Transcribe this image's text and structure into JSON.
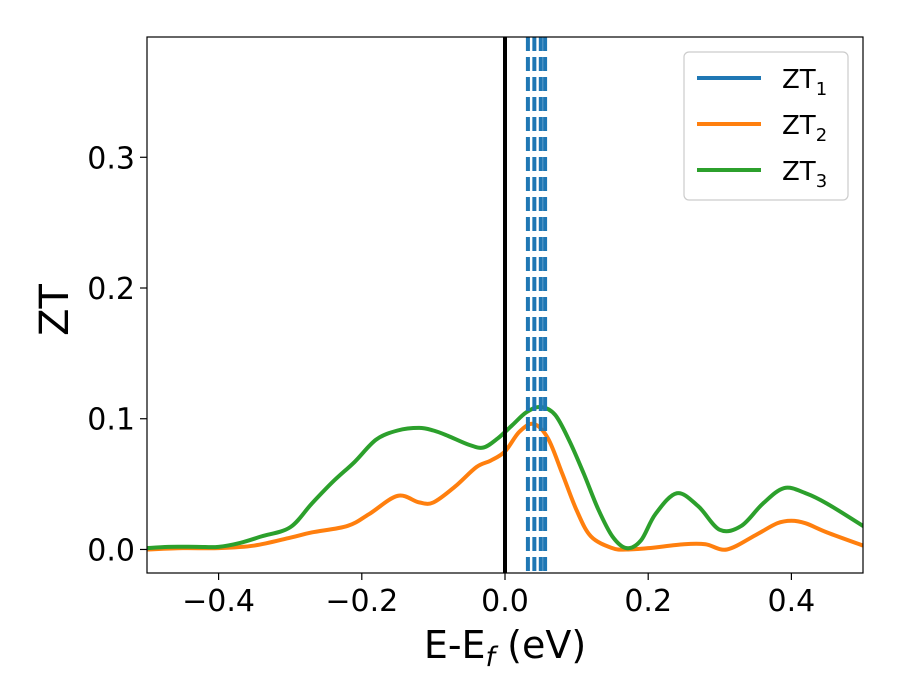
{
  "chart_data": {
    "type": "line",
    "xlabel": {
      "main": "E-E",
      "sub": "f",
      "tail": " (eV)"
    },
    "ylabel": "ZT",
    "xlim": [
      -0.5,
      0.5
    ],
    "ylim": [
      -0.018,
      0.392
    ],
    "x_ticks": [
      -0.4,
      -0.2,
      0.0,
      0.2,
      0.4
    ],
    "x_tick_labels": [
      "−0.4",
      "−0.2",
      "0.0",
      "0.2",
      "0.4"
    ],
    "y_ticks": [
      0.0,
      0.1,
      0.2,
      0.3
    ],
    "y_tick_labels": [
      "0.0",
      "0.1",
      "0.2",
      "0.3"
    ],
    "grid": false,
    "legend_position": "top-right",
    "fermi_level": 0.0,
    "dashed_markers": [
      0.032,
      0.041,
      0.05,
      0.056
    ],
    "series": [
      {
        "name": "ZT",
        "name_sub": "1",
        "color": "#1f77b4",
        "dashed": true,
        "x": [],
        "y": []
      },
      {
        "name": "ZT",
        "name_sub": "2",
        "color": "#ff7f0e",
        "dashed": false,
        "x": [
          -0.5,
          -0.45,
          -0.4,
          -0.35,
          -0.3,
          -0.27,
          -0.22,
          -0.19,
          -0.15,
          -0.12,
          -0.1,
          -0.07,
          -0.04,
          -0.02,
          0.0,
          0.02,
          0.04,
          0.06,
          0.08,
          0.1,
          0.12,
          0.15,
          0.17,
          0.2,
          0.25,
          0.28,
          0.31,
          0.35,
          0.38,
          0.4,
          0.42,
          0.45,
          0.5
        ],
        "y": [
          0.0,
          0.001,
          0.001,
          0.003,
          0.009,
          0.013,
          0.018,
          0.027,
          0.041,
          0.036,
          0.036,
          0.048,
          0.063,
          0.068,
          0.075,
          0.09,
          0.096,
          0.085,
          0.058,
          0.03,
          0.01,
          0.001,
          0.0,
          0.001,
          0.004,
          0.004,
          0.0,
          0.011,
          0.02,
          0.022,
          0.02,
          0.013,
          0.003
        ]
      },
      {
        "name": "ZT",
        "name_sub": "3",
        "color": "#2ca02c",
        "dashed": false,
        "x": [
          -0.5,
          -0.47,
          -0.43,
          -0.4,
          -0.37,
          -0.34,
          -0.3,
          -0.27,
          -0.24,
          -0.21,
          -0.18,
          -0.15,
          -0.12,
          -0.1,
          -0.08,
          -0.05,
          -0.03,
          -0.01,
          0.01,
          0.03,
          0.05,
          0.07,
          0.09,
          0.11,
          0.13,
          0.15,
          0.17,
          0.19,
          0.21,
          0.24,
          0.27,
          0.3,
          0.33,
          0.36,
          0.39,
          0.42,
          0.45,
          0.5
        ],
        "y": [
          0.001,
          0.002,
          0.002,
          0.002,
          0.005,
          0.01,
          0.017,
          0.035,
          0.052,
          0.067,
          0.084,
          0.091,
          0.093,
          0.091,
          0.087,
          0.08,
          0.078,
          0.085,
          0.095,
          0.105,
          0.109,
          0.103,
          0.083,
          0.058,
          0.031,
          0.01,
          0.001,
          0.007,
          0.027,
          0.043,
          0.033,
          0.015,
          0.018,
          0.035,
          0.047,
          0.043,
          0.035,
          0.018
        ]
      }
    ]
  }
}
